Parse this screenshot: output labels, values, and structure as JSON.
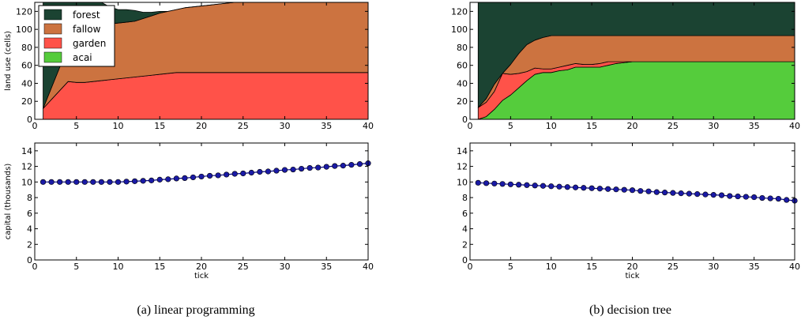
{
  "figures": [
    {
      "caption": "(a) linear programming"
    },
    {
      "caption": "(b) decision tree"
    }
  ],
  "colors": {
    "forest": "#1b4332",
    "fallow": "#cc7340",
    "garden": "#ff5249",
    "acai": "#55cc3c",
    "capital_line": "#000088",
    "capital_marker": "#1a1aa6"
  },
  "chart_data": [
    {
      "type": "area",
      "panel": "(a) linear programming — land use",
      "ylabel": "land use (cells)",
      "xlabel": "",
      "xlim": [
        0,
        40
      ],
      "ylim": [
        0,
        130
      ],
      "xticks": [
        0,
        5,
        10,
        15,
        20,
        25,
        30,
        35,
        40
      ],
      "yticks": [
        0,
        20,
        40,
        60,
        80,
        100,
        120
      ],
      "stacked": true,
      "legend": "top-left",
      "x": [
        1,
        2,
        3,
        4,
        5,
        6,
        7,
        8,
        9,
        10,
        11,
        12,
        13,
        14,
        15,
        16,
        17,
        18,
        19,
        20,
        21,
        22,
        23,
        24,
        25,
        26,
        27,
        28,
        29,
        30,
        31,
        32,
        33,
        34,
        35,
        36,
        37,
        38,
        39,
        40
      ],
      "series": [
        {
          "name": "acai",
          "values": [
            0,
            0,
            0,
            0,
            0,
            0,
            0,
            0,
            0,
            0,
            0,
            0,
            0,
            0,
            0,
            0,
            0,
            0,
            0,
            0,
            0,
            0,
            0,
            0,
            0,
            0,
            0,
            0,
            0,
            0,
            0,
            0,
            0,
            0,
            0,
            0,
            0,
            0,
            0,
            0
          ]
        },
        {
          "name": "garden",
          "values": [
            12,
            22,
            32,
            42,
            41,
            41,
            42,
            43,
            44,
            45,
            46,
            47,
            48,
            49,
            50,
            51,
            52,
            52,
            52,
            52,
            52,
            52,
            52,
            52,
            52,
            52,
            52,
            52,
            52,
            52,
            52,
            52,
            52,
            52,
            52,
            52,
            52,
            52,
            52,
            52
          ]
        },
        {
          "name": "fallow",
          "values": [
            0,
            13,
            26,
            39,
            52,
            63,
            67,
            70,
            62,
            62,
            62,
            62,
            64,
            66,
            68,
            69,
            70,
            72,
            73,
            74,
            75,
            76,
            77,
            78,
            78,
            78,
            78,
            78,
            78,
            78,
            78,
            78,
            78,
            78,
            78,
            78,
            78,
            78,
            78,
            78
          ]
        },
        {
          "name": "forest",
          "values": [
            118,
            95,
            72,
            49,
            37,
            26,
            21,
            17,
            19,
            15,
            14,
            12,
            7,
            4,
            2,
            0,
            0,
            0,
            0,
            0,
            0,
            0,
            0,
            0,
            0,
            0,
            0,
            0,
            0,
            0,
            0,
            0,
            0,
            0,
            0,
            0,
            0,
            0,
            0,
            0
          ]
        }
      ]
    },
    {
      "type": "area",
      "panel": "(b) decision tree — land use",
      "ylabel": "",
      "xlabel": "",
      "xlim": [
        0,
        40
      ],
      "ylim": [
        0,
        130
      ],
      "xticks": [
        0,
        5,
        10,
        15,
        20,
        25,
        30,
        35,
        40
      ],
      "yticks": [
        0,
        20,
        40,
        60,
        80,
        100,
        120
      ],
      "stacked": true,
      "x": [
        1,
        2,
        3,
        4,
        5,
        6,
        7,
        8,
        9,
        10,
        11,
        12,
        13,
        14,
        15,
        16,
        17,
        18,
        19,
        20,
        21,
        22,
        23,
        24,
        25,
        26,
        27,
        28,
        29,
        30,
        31,
        32,
        33,
        34,
        35,
        36,
        37,
        38,
        39,
        40
      ],
      "series": [
        {
          "name": "acai",
          "values": [
            0,
            3,
            11,
            21,
            27,
            35,
            43,
            50,
            52,
            52,
            54,
            55,
            58,
            58,
            58,
            58,
            60,
            62,
            63,
            64,
            64,
            64,
            64,
            64,
            64,
            64,
            64,
            64,
            64,
            64,
            64,
            64,
            64,
            64,
            64,
            64,
            64,
            64,
            64,
            64
          ]
        },
        {
          "name": "garden",
          "values": [
            13,
            16,
            20,
            30,
            23,
            16,
            10,
            7,
            4,
            4,
            4,
            5,
            4,
            3,
            3,
            4,
            4,
            2,
            1,
            0,
            0,
            0,
            0,
            0,
            0,
            0,
            0,
            0,
            0,
            0,
            0,
            0,
            0,
            0,
            0,
            0,
            0,
            0,
            0,
            0
          ]
        },
        {
          "name": "fallow",
          "values": [
            0,
            4,
            8,
            0,
            11,
            22,
            30,
            31,
            35,
            37,
            35,
            33,
            31,
            32,
            32,
            31,
            29,
            29,
            29,
            29,
            29,
            29,
            29,
            29,
            29,
            29,
            29,
            29,
            29,
            29,
            29,
            29,
            29,
            29,
            29,
            29,
            29,
            29,
            29,
            29
          ]
        },
        {
          "name": "forest",
          "values": [
            117,
            107,
            91,
            79,
            69,
            57,
            47,
            42,
            39,
            37,
            37,
            37,
            37,
            37,
            37,
            37,
            37,
            37,
            37,
            37,
            37,
            37,
            37,
            37,
            37,
            37,
            37,
            37,
            37,
            37,
            37,
            37,
            37,
            37,
            37,
            37,
            37,
            37,
            37,
            37
          ]
        }
      ]
    },
    {
      "type": "line",
      "panel": "(a) linear programming — capital",
      "ylabel": "capital (thousands)",
      "xlabel": "tick",
      "xlim": [
        0,
        40
      ],
      "ylim": [
        0,
        15
      ],
      "xticks": [
        0,
        5,
        10,
        15,
        20,
        25,
        30,
        35,
        40
      ],
      "yticks": [
        0,
        2,
        4,
        6,
        8,
        10,
        12,
        14
      ],
      "markers": true,
      "x": [
        1,
        2,
        3,
        4,
        5,
        6,
        7,
        8,
        9,
        10,
        11,
        12,
        13,
        14,
        15,
        16,
        17,
        18,
        19,
        20,
        21,
        22,
        23,
        24,
        25,
        26,
        27,
        28,
        29,
        30,
        31,
        32,
        33,
        34,
        35,
        36,
        37,
        38,
        39,
        40
      ],
      "values": [
        10.0,
        10.0,
        10.0,
        10.0,
        10.0,
        10.0,
        10.0,
        10.0,
        10.0,
        10.0,
        10.05,
        10.1,
        10.15,
        10.2,
        10.3,
        10.35,
        10.45,
        10.5,
        10.6,
        10.7,
        10.8,
        10.85,
        10.95,
        11.05,
        11.1,
        11.2,
        11.3,
        11.35,
        11.45,
        11.55,
        11.6,
        11.7,
        11.8,
        11.85,
        11.95,
        12.05,
        12.1,
        12.2,
        12.3,
        12.4
      ]
    },
    {
      "type": "line",
      "panel": "(b) decision tree — capital",
      "ylabel": "",
      "xlabel": "tick",
      "xlim": [
        0,
        40
      ],
      "ylim": [
        0,
        15
      ],
      "xticks": [
        0,
        5,
        10,
        15,
        20,
        25,
        30,
        35,
        40
      ],
      "yticks": [
        0,
        2,
        4,
        6,
        8,
        10,
        12,
        14
      ],
      "markers": true,
      "x": [
        1,
        2,
        3,
        4,
        5,
        6,
        7,
        8,
        9,
        10,
        11,
        12,
        13,
        14,
        15,
        16,
        17,
        18,
        19,
        20,
        21,
        22,
        23,
        24,
        25,
        26,
        27,
        28,
        29,
        30,
        31,
        32,
        33,
        34,
        35,
        36,
        37,
        38,
        39,
        40
      ],
      "values": [
        9.9,
        9.85,
        9.8,
        9.75,
        9.7,
        9.65,
        9.6,
        9.55,
        9.5,
        9.45,
        9.4,
        9.35,
        9.3,
        9.25,
        9.2,
        9.15,
        9.1,
        9.05,
        9.0,
        8.95,
        8.85,
        8.8,
        8.7,
        8.65,
        8.6,
        8.55,
        8.5,
        8.45,
        8.4,
        8.35,
        8.3,
        8.2,
        8.15,
        8.1,
        8.05,
        7.95,
        7.9,
        7.85,
        7.7,
        7.6
      ]
    }
  ]
}
